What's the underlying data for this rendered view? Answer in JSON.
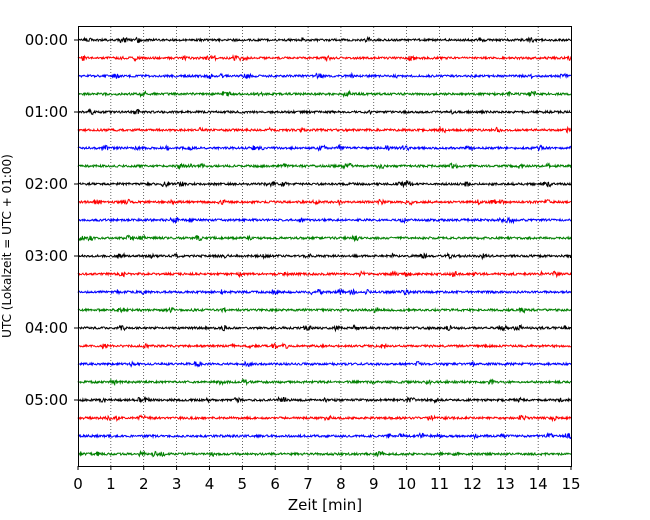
{
  "chart_data": {
    "type": "line",
    "title": "",
    "xlabel": "Zeit  [min]",
    "ylabel": "UTC (Lokalzeit = UTC + 01:00)",
    "xlim": [
      0,
      15
    ],
    "x_ticks": [
      "0",
      "1",
      "2",
      "3",
      "4",
      "5",
      "6",
      "7",
      "8",
      "9",
      "10",
      "11",
      "12",
      "13",
      "14",
      "15"
    ],
    "y_tick_labels": [
      "00:00",
      "01:00",
      "02:00",
      "03:00",
      "04:00",
      "05:00"
    ],
    "grid": "vertical dotted",
    "trace_minutes": 15,
    "trace_colors": [
      "#000000",
      "#ff0000",
      "#0000ff",
      "#008000"
    ],
    "series": [
      {
        "start": "00:00"
      },
      {
        "start": "00:15"
      },
      {
        "start": "00:30"
      },
      {
        "start": "00:45"
      },
      {
        "start": "01:00"
      },
      {
        "start": "01:15"
      },
      {
        "start": "01:30"
      },
      {
        "start": "01:45"
      },
      {
        "start": "02:00"
      },
      {
        "start": "02:15"
      },
      {
        "start": "02:30"
      },
      {
        "start": "02:45"
      },
      {
        "start": "03:00"
      },
      {
        "start": "03:15"
      },
      {
        "start": "03:30"
      },
      {
        "start": "03:45"
      },
      {
        "start": "04:00"
      },
      {
        "start": "04:15"
      },
      {
        "start": "04:30"
      },
      {
        "start": "04:45"
      },
      {
        "start": "05:00"
      },
      {
        "start": "05:15"
      },
      {
        "start": "05:30"
      },
      {
        "start": "05:45"
      }
    ]
  }
}
